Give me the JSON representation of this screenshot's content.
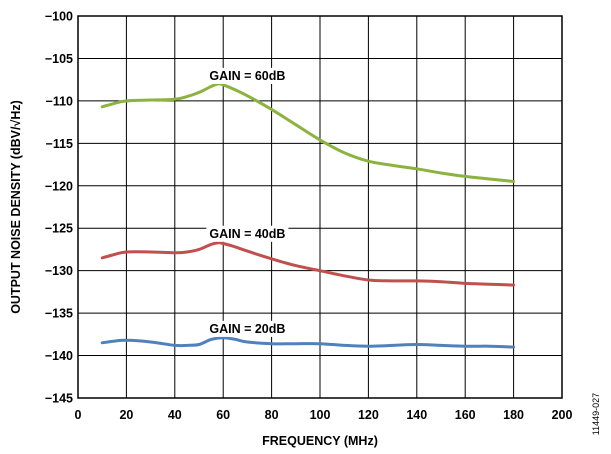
{
  "chart_data": {
    "type": "line",
    "xlabel": "FREQUENCY (MHz)",
    "ylabel": "OUTPUT NOISE DENSITY (dBV/√Hz)",
    "xlim": [
      0,
      200
    ],
    "ylim": [
      -145,
      -100
    ],
    "x_ticks": [
      "0",
      "20",
      "40",
      "60",
      "80",
      "100",
      "120",
      "140",
      "160",
      "180",
      "200"
    ],
    "y_ticks": [
      "−100",
      "−105",
      "−110",
      "−115",
      "−120",
      "−125",
      "−130",
      "−135",
      "−140",
      "−145"
    ],
    "grid": true,
    "series": [
      {
        "name": "GAIN = 60dB",
        "color": "#8cb33f",
        "x": [
          10,
          15,
          20,
          30,
          40,
          45,
          50,
          55,
          58,
          60,
          65,
          70,
          80,
          90,
          100,
          110,
          120,
          130,
          140,
          150,
          160,
          170,
          180
        ],
        "y": [
          -110.7,
          -110.3,
          -110.0,
          -109.9,
          -109.8,
          -109.5,
          -109.0,
          -108.3,
          -108.0,
          -108.1,
          -108.7,
          -109.4,
          -111.0,
          -112.8,
          -114.6,
          -116.1,
          -117.1,
          -117.6,
          -118.0,
          -118.5,
          -118.9,
          -119.2,
          -119.5
        ]
      },
      {
        "name": "GAIN = 40dB",
        "color": "#c0504d",
        "x": [
          10,
          15,
          20,
          30,
          40,
          45,
          50,
          55,
          58,
          60,
          65,
          70,
          80,
          90,
          100,
          110,
          120,
          130,
          140,
          150,
          160,
          170,
          180
        ],
        "y": [
          -128.5,
          -128.1,
          -127.8,
          -127.8,
          -127.9,
          -127.8,
          -127.5,
          -126.9,
          -126.7,
          -126.8,
          -127.2,
          -127.7,
          -128.6,
          -129.4,
          -130.0,
          -130.6,
          -131.1,
          -131.2,
          -131.2,
          -131.3,
          -131.5,
          -131.6,
          -131.7
        ]
      },
      {
        "name": "GAIN = 20dB",
        "color": "#4f81bd",
        "x": [
          10,
          15,
          20,
          30,
          40,
          45,
          50,
          55,
          60,
          65,
          70,
          80,
          90,
          100,
          110,
          120,
          130,
          140,
          150,
          160,
          170,
          180
        ],
        "y": [
          -138.5,
          -138.3,
          -138.2,
          -138.4,
          -138.8,
          -138.8,
          -138.7,
          -138.1,
          -137.9,
          -138.1,
          -138.4,
          -138.6,
          -138.6,
          -138.6,
          -138.8,
          -138.9,
          -138.8,
          -138.7,
          -138.8,
          -138.9,
          -138.9,
          -139.0
        ]
      }
    ],
    "annotations": [
      "GAIN = 60dB",
      "GAIN = 40dB",
      "GAIN = 20dB"
    ],
    "figure_id": "11449-027"
  }
}
